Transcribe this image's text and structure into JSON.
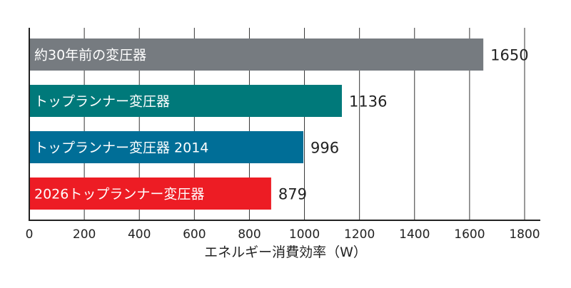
{
  "chart_data": {
    "type": "bar",
    "orientation": "horizontal",
    "categories": [
      "約30年前の変圧器",
      "トップランナー変圧器",
      "トップランナー変圧器 2014",
      "2026トップランナー変圧器"
    ],
    "values": [
      1650,
      1136,
      996,
      879
    ],
    "value_labels": [
      "1650",
      "1136",
      "996",
      "879"
    ],
    "colors": [
      "#767b80",
      "#00797a",
      "#006e97",
      "#ed1c24"
    ],
    "xlabel": "エネルギー消費効率（W）",
    "xlim": [
      0,
      1800
    ],
    "xticks": [
      0,
      200,
      400,
      600,
      800,
      1000,
      1200,
      1400,
      1600,
      1800
    ],
    "xtick_labels": [
      "0",
      "200",
      "400",
      "600",
      "800",
      "1000",
      "1200",
      "1400",
      "1600",
      "1800"
    ],
    "grid": "vertical",
    "legend": "none"
  }
}
